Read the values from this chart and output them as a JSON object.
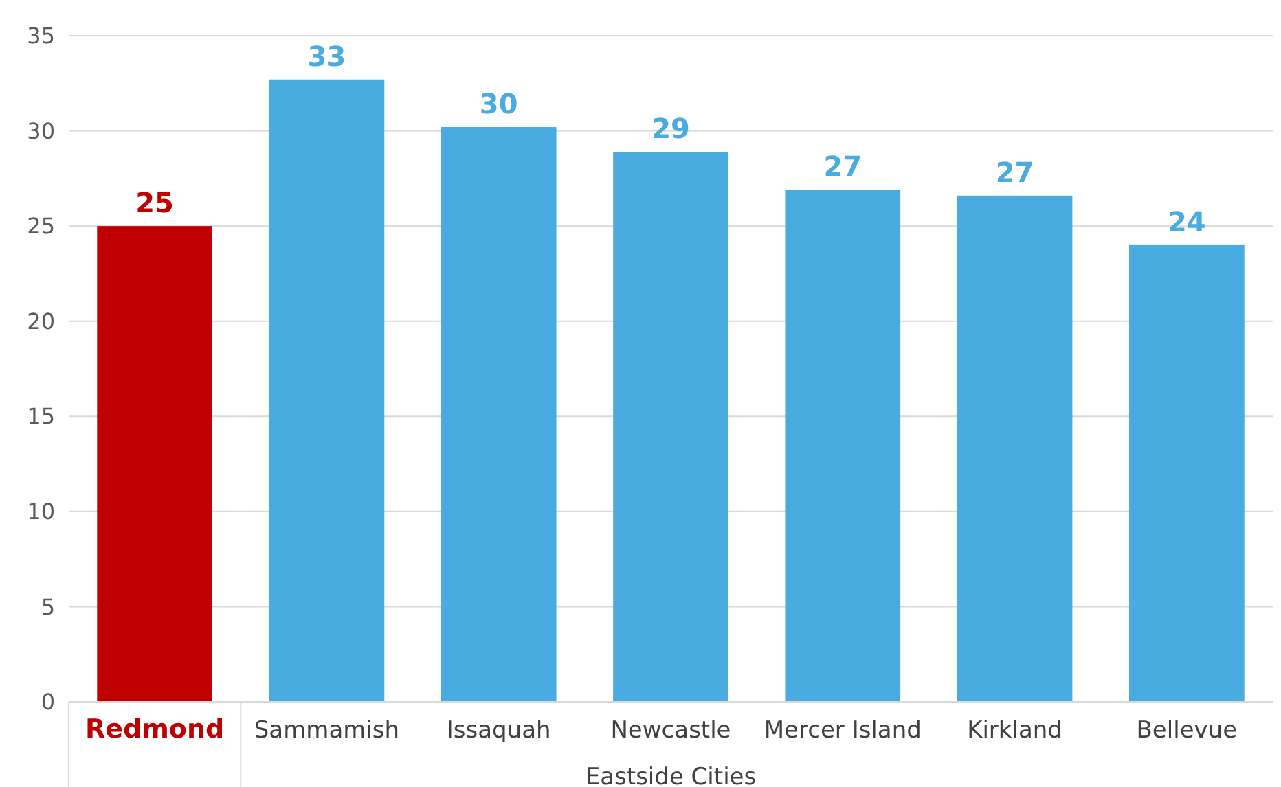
{
  "chart_data": {
    "type": "bar",
    "xlabel": "Eastside Cities",
    "categories": [
      "Redmond",
      "Sammamish",
      "Issaquah",
      "Newcastle",
      "Mercer Island",
      "Kirkland",
      "Bellevue"
    ],
    "values": [
      25,
      32.7,
      30.2,
      28.9,
      26.9,
      26.6,
      24
    ],
    "value_labels": [
      "25",
      "33",
      "30",
      "29",
      "27",
      "27",
      "24"
    ],
    "colors": [
      "#c00000",
      "#4aabe0",
      "#4aabe0",
      "#4aabe0",
      "#4aabe0",
      "#4aabe0",
      "#4aabe0"
    ],
    "ylim": [
      0,
      35
    ],
    "yticks": [
      0,
      5,
      10,
      15,
      20,
      25,
      30,
      35
    ],
    "grid": "y"
  }
}
